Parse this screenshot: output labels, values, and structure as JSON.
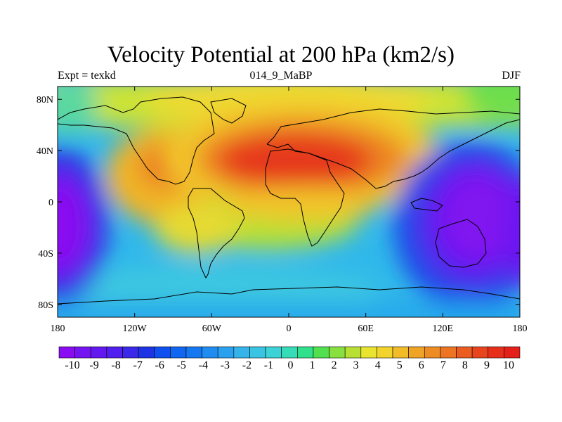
{
  "title": "Velocity Potential at 200 hPa (km2/s)",
  "subtitle": {
    "left": "Expt = texkd",
    "center": "014_9_MaBP",
    "right": "DJF"
  },
  "x_ticks": [
    {
      "lon": -180,
      "label": "180"
    },
    {
      "lon": -120,
      "label": "120W"
    },
    {
      "lon": -60,
      "label": "60W"
    },
    {
      "lon": 0,
      "label": "0"
    },
    {
      "lon": 60,
      "label": "60E"
    },
    {
      "lon": 120,
      "label": "120E"
    },
    {
      "lon": 180,
      "label": "180"
    }
  ],
  "y_ticks": [
    {
      "lat": 80,
      "label": "80N"
    },
    {
      "lat": 40,
      "label": "40N"
    },
    {
      "lat": 0,
      "label": "0"
    },
    {
      "lat": -40,
      "label": "40S"
    },
    {
      "lat": -80,
      "label": "80S"
    }
  ],
  "colorbar": {
    "levels": [
      "-10",
      "-9",
      "-8",
      "-7",
      "-6",
      "-5",
      "-4",
      "-3",
      "-2",
      "-1",
      "0",
      "1",
      "2",
      "3",
      "4",
      "5",
      "6",
      "7",
      "8",
      "9",
      "10"
    ],
    "colors": [
      "#8a0cf0",
      "#7414f0",
      "#6418f0",
      "#5220ee",
      "#3b28e8",
      "#1e34e4",
      "#0f50ee",
      "#1066f0",
      "#1578f0",
      "#1e8cf0",
      "#2aa0ee",
      "#34b4ea",
      "#38c4e2",
      "#3cd2d6",
      "#36dcb8",
      "#30e08c",
      "#52e050",
      "#88e040",
      "#b8e034",
      "#e8e430",
      "#f2d42c",
      "#f2bc28",
      "#f0a426",
      "#ee8c24",
      "#ec7422",
      "#ea5c20",
      "#e8441e",
      "#e6301c",
      "#e4201a"
    ]
  },
  "map_data": {
    "variable": "velocity potential",
    "level_hPa": 200,
    "units": "km2/s",
    "lon_range": [
      -180,
      180
    ],
    "lat_range": [
      -90,
      90
    ],
    "features": [
      {
        "name": "positive-center-africa-asia",
        "lon": 20,
        "lat": 25,
        "value": 10
      },
      {
        "name": "positive-center-americas",
        "lon": -90,
        "lat": 25,
        "value": 8
      },
      {
        "name": "negative-center-west-pacific",
        "lon": 150,
        "lat": 0,
        "value": -10
      },
      {
        "name": "negative-center-east-pacific",
        "lon": -175,
        "lat": -10,
        "value": -10
      }
    ]
  }
}
